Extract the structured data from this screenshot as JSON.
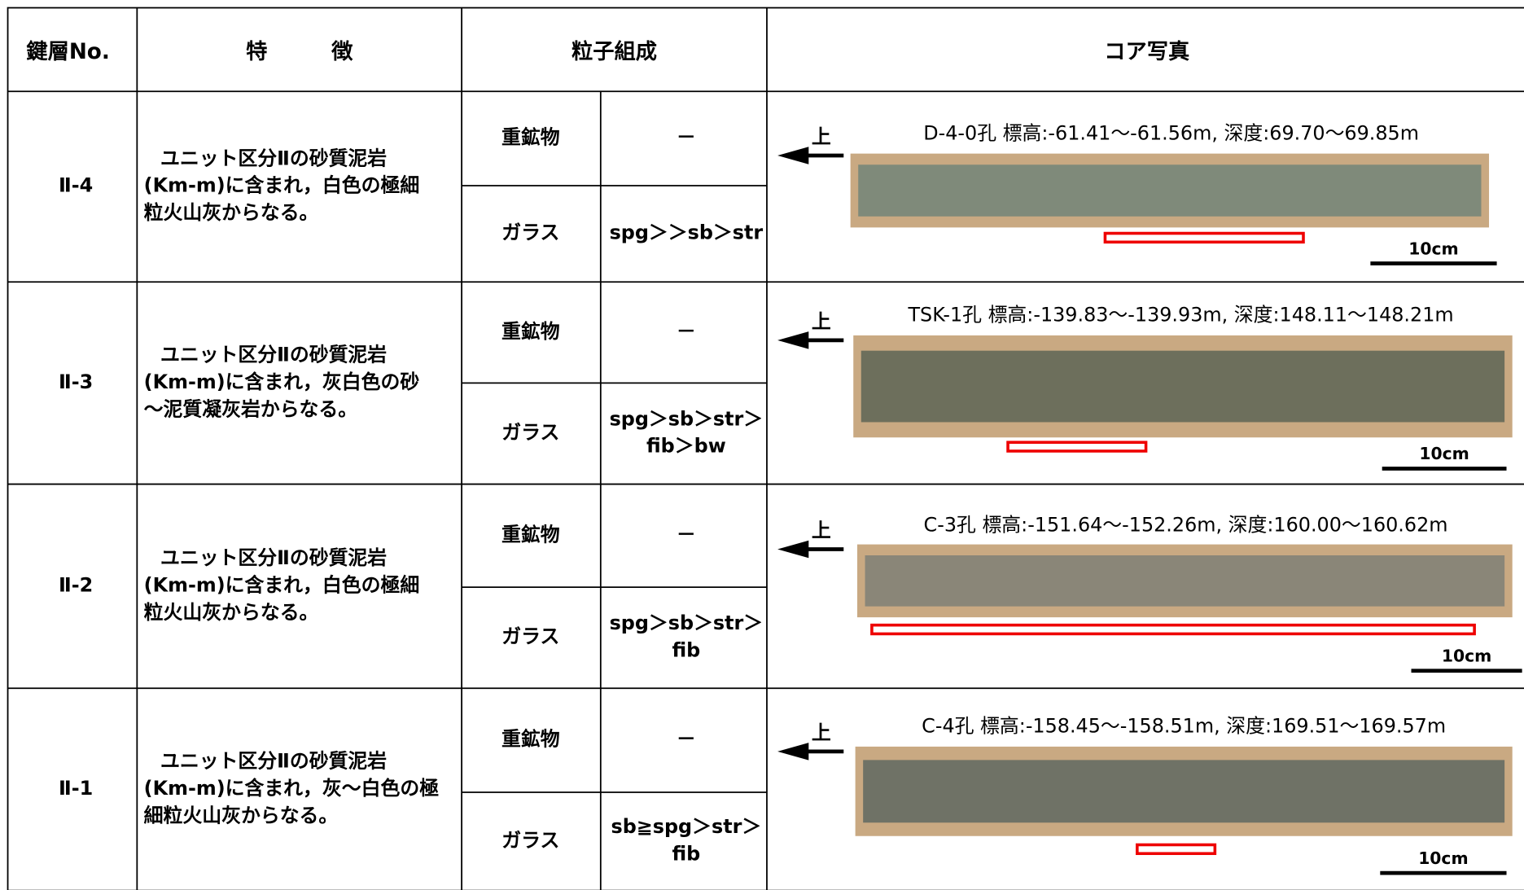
{
  "header": {
    "key": "鍵層No.",
    "features": "特　　　徴",
    "grain": "粒子組成",
    "photo": "コア写真"
  },
  "rows": [
    {
      "key": "Ⅱ-4",
      "description": [
        "ユニット区分Ⅱの砂質泥岩",
        "(Km-m)に含まれ，白色の極細",
        "粒火山灰からなる。"
      ],
      "heavy_label": "重鉱物",
      "heavy": "－",
      "glass_label": "ガラス",
      "glass": [
        "spg＞＞sb＞str"
      ],
      "up": "上",
      "caption": "D-4-0孔  標高:-61.41～-61.56m, 深度:69.70～69.85m",
      "scale": "10cm"
    },
    {
      "key": "Ⅱ-3",
      "description": [
        "ユニット区分Ⅱの砂質泥岩",
        "(Km-m)に含まれ，灰白色の砂",
        "～泥質凝灰岩からなる。"
      ],
      "heavy_label": "重鉱物",
      "heavy": "－",
      "glass_label": "ガラス",
      "glass": [
        "spg＞sb＞str＞",
        "fib＞bw"
      ],
      "up": "上",
      "caption": "TSK-1孔  標高:-139.83～-139.93m, 深度:148.11～148.21m",
      "scale": "10cm"
    },
    {
      "key": "Ⅱ-2",
      "description": [
        "ユニット区分Ⅱの砂質泥岩",
        "(Km-m)に含まれ，白色の極細",
        "粒火山灰からなる。"
      ],
      "heavy_label": "重鉱物",
      "heavy": "－",
      "glass_label": "ガラス",
      "glass": [
        "spg＞sb＞str＞",
        "fib"
      ],
      "up": "上",
      "caption": "C-3孔  標高:-151.64～-152.26m, 深度:160.00～160.62m",
      "scale": "10cm"
    },
    {
      "key": "Ⅱ-1",
      "description": [
        "ユニット区分Ⅱの砂質泥岩",
        "(Km-m)に含まれ，灰～白色の極",
        "細粒火山灰からなる。"
      ],
      "heavy_label": "重鉱物",
      "heavy": "－",
      "glass_label": "ガラス",
      "glass": [
        "sb≧spg＞str＞",
        "fib"
      ],
      "up": "上",
      "caption": "C-4孔  標高:-158.45～-158.51m, 深度:169.51～169.57m",
      "scale": "10cm"
    }
  ]
}
